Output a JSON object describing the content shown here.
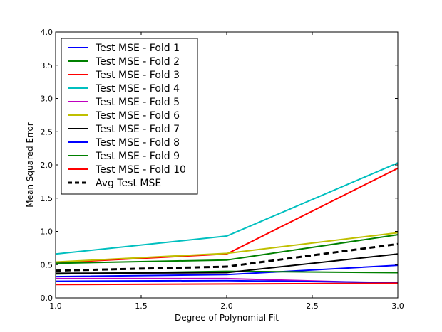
{
  "chart_data": {
    "type": "line",
    "title": "",
    "xlabel": "Degree of Polynomial Fit",
    "ylabel": "Mean Squared Error",
    "xlim": [
      1.0,
      3.0
    ],
    "ylim": [
      0.0,
      4.0
    ],
    "xticks": [
      "1.0",
      "1.5",
      "2.0",
      "2.5",
      "3.0"
    ],
    "yticks": [
      "0.0",
      "0.5",
      "1.0",
      "1.5",
      "2.0",
      "2.5",
      "3.0",
      "3.5",
      "4.0"
    ],
    "grid": false,
    "legend_position": "top-left",
    "x": [
      1,
      2,
      3
    ],
    "series": [
      {
        "name": "Test MSE - Fold 1",
        "color": "#0000ff",
        "dash": "solid",
        "values": [
          0.32,
          0.35,
          0.49
        ]
      },
      {
        "name": "Test MSE - Fold 2",
        "color": "#008000",
        "dash": "solid",
        "values": [
          0.36,
          0.4,
          0.38
        ]
      },
      {
        "name": "Test MSE - Fold 3",
        "color": "#ff0000",
        "dash": "solid",
        "values": [
          0.53,
          0.66,
          1.95
        ]
      },
      {
        "name": "Test MSE - Fold 4",
        "color": "#00bfbf",
        "dash": "solid",
        "values": [
          0.66,
          0.93,
          2.03
        ]
      },
      {
        "name": "Test MSE - Fold 5",
        "color": "#bf00bf",
        "dash": "solid",
        "values": [
          0.29,
          0.29,
          0.22
        ]
      },
      {
        "name": "Test MSE - Fold 6",
        "color": "#bfbf00",
        "dash": "solid",
        "values": [
          0.54,
          0.67,
          0.98
        ]
      },
      {
        "name": "Test MSE - Fold 7",
        "color": "#000000",
        "dash": "solid",
        "values": [
          0.37,
          0.38,
          0.66
        ]
      },
      {
        "name": "Test MSE - Fold 8",
        "color": "#0000ff",
        "dash": "solid",
        "values": [
          0.25,
          0.26,
          0.23
        ]
      },
      {
        "name": "Test MSE - Fold 9",
        "color": "#008000",
        "dash": "solid",
        "values": [
          0.52,
          0.57,
          0.95
        ]
      },
      {
        "name": "Test MSE - Fold 10",
        "color": "#ff0000",
        "dash": "solid",
        "values": [
          0.2,
          0.21,
          0.22
        ]
      },
      {
        "name": "Avg Test MSE",
        "color": "#000000",
        "dash": "dashed",
        "values": [
          0.41,
          0.47,
          0.81
        ]
      }
    ]
  }
}
